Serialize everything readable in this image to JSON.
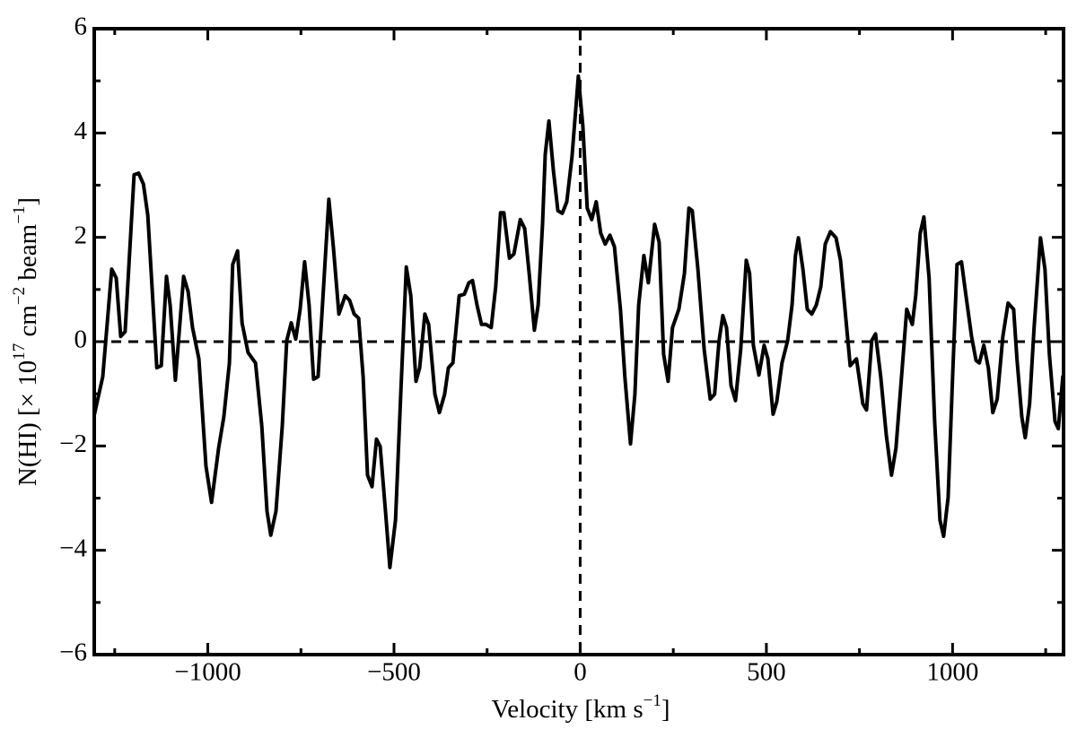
{
  "chart_data": {
    "type": "line",
    "xlabel": [
      "Velocity [km s",
      "−1",
      "]"
    ],
    "ylabel": [
      "N(HI) [× 10",
      "17",
      " cm",
      "−2",
      " beam",
      "−1",
      "]"
    ],
    "xlim": [
      -1305,
      1298
    ],
    "ylim": [
      -6,
      6
    ],
    "xticks": [
      {
        "value": -1000,
        "label": "−1000"
      },
      {
        "value": -500,
        "label": "−500"
      },
      0,
      500,
      1000
    ],
    "yticks": [
      {
        "value": -6,
        "label": "−6"
      },
      {
        "value": -4,
        "label": "−4"
      },
      {
        "value": -2,
        "label": "−2"
      },
      0,
      2,
      4,
      6
    ],
    "xminorticks": [
      -1250,
      -750,
      -250,
      250,
      750,
      1250
    ],
    "yminorticks": [
      -5,
      -3,
      -1,
      1,
      3,
      5
    ],
    "reference_lines": {
      "x": [
        0
      ],
      "y": [
        0
      ]
    },
    "series": [
      {
        "color": "#000000",
        "x": [
          -1306,
          -1282,
          -1258,
          -1246,
          -1234,
          -1222,
          -1198,
          -1186,
          -1173,
          -1161,
          -1137,
          -1125,
          -1111,
          -1101,
          -1087,
          -1065,
          -1053,
          -1041,
          -1024,
          -1005,
          -990,
          -971,
          -957,
          -942,
          -933,
          -920,
          -908,
          -892,
          -872,
          -855,
          -841,
          -831,
          -817,
          -800,
          -788,
          -776,
          -764,
          -752,
          -740,
          -728,
          -716,
          -704,
          -692,
          -675,
          -663,
          -648,
          -631,
          -619,
          -607,
          -595,
          -583,
          -571,
          -559,
          -547,
          -537,
          -523,
          -511,
          -496,
          -482,
          -467,
          -455,
          -441,
          -431,
          -417,
          -407,
          -390,
          -378,
          -364,
          -354,
          -342,
          -325,
          -311,
          -299,
          -289,
          -277,
          -265,
          -253,
          -239,
          -227,
          -214,
          -205,
          -190,
          -178,
          -161,
          -149,
          -137,
          -123,
          -113,
          -101,
          -94,
          -84,
          -72,
          -60,
          -48,
          -36,
          -22,
          -5,
          7,
          19,
          31,
          43,
          55,
          67,
          80,
          92,
          108,
          120,
          135,
          147,
          157,
          171,
          183,
          200,
          212,
          224,
          236,
          248,
          265,
          280,
          292,
          301,
          316,
          333,
          349,
          361,
          373,
          383,
          393,
          405,
          417,
          431,
          446,
          455,
          465,
          480,
          494,
          504,
          518,
          528,
          542,
          557,
          569,
          578,
          586,
          598,
          610,
          622,
          634,
          646,
          658,
          672,
          687,
          699,
          711,
          725,
          742,
          759,
          769,
          783,
          793,
          807,
          822,
          836,
          848,
          863,
          877,
          892,
          901,
          913,
          923,
          937,
          952,
          966,
          976,
          988,
          1000,
          1012,
          1024,
          1036,
          1051,
          1063,
          1072,
          1084,
          1096,
          1108,
          1120,
          1135,
          1149,
          1164,
          1173,
          1186,
          1195,
          1207,
          1219,
          1236,
          1248,
          1260,
          1275,
          1284,
          1296
        ],
        "values": [
          -1.44,
          -0.67,
          1.39,
          1.22,
          0.1,
          0.19,
          3.2,
          3.23,
          3.02,
          2.42,
          -0.5,
          -0.46,
          1.25,
          0.7,
          -0.74,
          1.25,
          0.96,
          0.27,
          -0.33,
          -2.39,
          -3.08,
          -2.04,
          -1.44,
          -0.41,
          1.48,
          1.74,
          0.36,
          -0.21,
          -0.41,
          -1.62,
          -3.25,
          -3.71,
          -3.25,
          -1.62,
          0.02,
          0.36,
          0.05,
          0.62,
          1.53,
          0.7,
          -0.72,
          -0.67,
          0.7,
          2.73,
          1.82,
          0.53,
          0.88,
          0.79,
          0.53,
          0.45,
          -0.67,
          -2.56,
          -2.78,
          -1.87,
          -2.01,
          -3.25,
          -4.33,
          -3.42,
          -1.01,
          1.43,
          0.88,
          -0.76,
          -0.5,
          0.53,
          0.33,
          -1.01,
          -1.36,
          -1.01,
          -0.5,
          -0.41,
          0.88,
          0.91,
          1.13,
          1.17,
          0.7,
          0.33,
          0.33,
          0.27,
          1.05,
          2.47,
          2.47,
          1.6,
          1.68,
          2.34,
          2.17,
          1.31,
          0.22,
          0.7,
          2.25,
          3.59,
          4.23,
          3.28,
          2.51,
          2.46,
          2.68,
          3.54,
          5.09,
          4.14,
          2.56,
          2.34,
          2.68,
          2.08,
          1.87,
          2.04,
          1.82,
          0.62,
          -0.67,
          -1.96,
          -1.01,
          0.7,
          1.65,
          1.13,
          2.25,
          1.91,
          -0.24,
          -0.76,
          0.27,
          0.62,
          1.31,
          2.56,
          2.51,
          1.39,
          -0.15,
          -1.1,
          -1.01,
          0.02,
          0.5,
          0.27,
          -0.84,
          -1.13,
          -0.15,
          1.56,
          1.31,
          -0.07,
          -0.64,
          -0.07,
          -0.33,
          -1.39,
          -1.15,
          -0.41,
          0.02,
          0.7,
          1.65,
          1.99,
          1.39,
          0.62,
          0.53,
          0.7,
          1.05,
          1.87,
          2.11,
          1.99,
          1.56,
          0.62,
          -0.46,
          -0.33,
          -1.19,
          -1.31,
          0.02,
          0.15,
          -0.67,
          -1.79,
          -2.56,
          -2.04,
          -0.67,
          0.62,
          0.33,
          0.88,
          2.08,
          2.39,
          1.22,
          -1.53,
          -3.42,
          -3.73,
          -2.99,
          -0.67,
          1.48,
          1.53,
          0.88,
          0.1,
          -0.36,
          -0.41,
          -0.07,
          -0.5,
          -1.36,
          -1.1,
          0.1,
          0.74,
          0.62,
          -0.33,
          -1.44,
          -1.84,
          -1.19,
          0.27,
          1.99,
          1.39,
          -0.24,
          -1.53,
          -1.67,
          -0.67
        ]
      }
    ]
  }
}
